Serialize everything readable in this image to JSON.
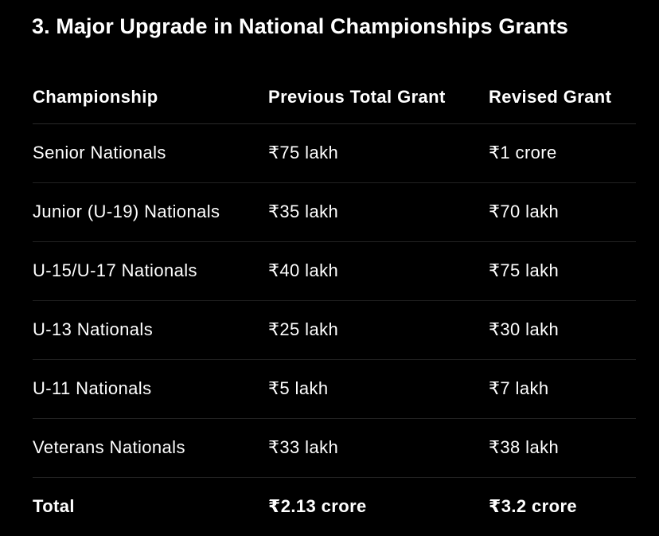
{
  "heading": "3. Major Upgrade in National Championships Grants",
  "table": {
    "columns": [
      "Championship",
      "Previous Total Grant",
      "Revised Grant"
    ],
    "rows": [
      [
        "Senior Nationals",
        "₹75 lakh",
        "₹1 crore"
      ],
      [
        "Junior (U-19) Nationals",
        "₹35 lakh",
        "₹70 lakh"
      ],
      [
        "U-15/U-17 Nationals",
        "₹40 lakh",
        "₹75 lakh"
      ],
      [
        "U-13 Nationals",
        "₹25 lakh",
        "₹30 lakh"
      ],
      [
        "U-11 Nationals",
        "₹5 lakh",
        "₹7 lakh"
      ],
      [
        "Veterans Nationals",
        "₹33 lakh",
        "₹38 lakh"
      ],
      [
        "Total",
        "₹2.13 crore",
        "₹3.2 crore"
      ]
    ]
  }
}
